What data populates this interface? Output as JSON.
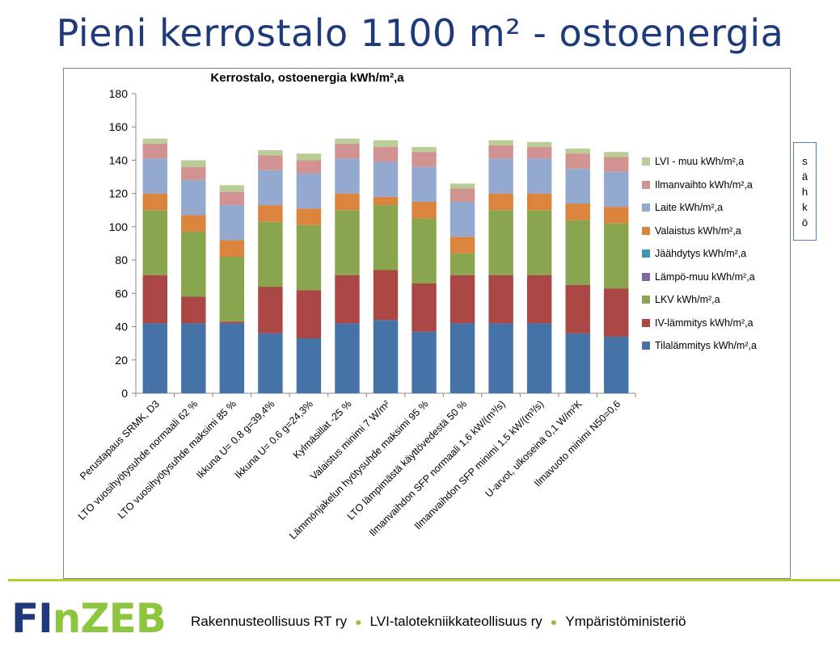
{
  "slide": {
    "title": "Pieni kerrostalo 1100 m² - ostoenergia"
  },
  "side_label": [
    "s",
    "ä",
    "h",
    "k",
    "ö"
  ],
  "footer": {
    "logo_fi": "FI",
    "logo_n": "n",
    "logo_zeb": "ZEB",
    "orgs": [
      "Rakennusteollisuus RT ry",
      "LVI-talotekniikkateollisuus ry",
      "Ympäristöministeriö"
    ]
  },
  "chart_data": {
    "type": "bar",
    "stacked": true,
    "title": "Kerrostalo, ostoenergia kWh/m²,a",
    "xlabel": "",
    "ylabel": "",
    "ylim": [
      0,
      180
    ],
    "yticks": [
      0,
      20,
      40,
      60,
      80,
      100,
      120,
      140,
      160,
      180
    ],
    "grid": false,
    "legend_position": "right",
    "categories": [
      "Perustapaus SRMK, D3",
      "LTO vuosihyötysuhde normaali 62 %",
      "LTO vuosihyötysuhde maksimi 85 %",
      "Ikkuna U= 0.8 g=39,4%",
      "Ikkuna U= 0.6 g=24,3%",
      "Kylmäsillat -25 %",
      "Valaistus minimi 7 W/m²",
      "Lämmönjakelun hyötysuhde maksimi 95 %",
      "LTO lämpimästä käyttövedestä 50 %",
      "Ilmanvaihdon SFP normaali 1,6 kW/(m³/s)",
      "Ilmanvaihdon SFP minimi 1,5 kW/(m³/s)",
      "U-arvot, ulkoseinä 0,1 W/m²K",
      "Ilmavuoto minimi N50=0,6"
    ],
    "series": [
      {
        "name": "Tilalämmitys kWh/m²,a",
        "color": "#4572a7",
        "values": [
          42,
          42,
          42,
          36,
          33,
          42,
          44,
          37,
          42,
          42,
          42,
          36,
          34
        ]
      },
      {
        "name": "IV-lämmitys kWh/m²,a",
        "color": "#aa4643",
        "values": [
          29,
          16,
          1,
          28,
          29,
          29,
          30,
          29,
          29,
          29,
          29,
          29,
          29
        ]
      },
      {
        "name": "LKV kWh/m²,a",
        "color": "#89a54e",
        "values": [
          39,
          39,
          39,
          39,
          39,
          39,
          39,
          39,
          13,
          39,
          39,
          39,
          39
        ]
      },
      {
        "name": "Lämpö-muu kWh/m²,a",
        "color": "#80699b",
        "values": [
          0,
          0,
          0,
          0,
          0,
          0,
          0,
          0,
          0,
          0,
          0,
          0,
          0
        ]
      },
      {
        "name": "Jäähdytys kWh/m²,a",
        "color": "#3d96ae",
        "values": [
          0,
          0,
          0,
          0,
          0,
          0,
          0,
          0,
          0,
          0,
          0,
          0,
          0
        ]
      },
      {
        "name": "Valaistus kWh/m²,a",
        "color": "#db843d",
        "values": [
          10,
          10,
          10,
          10,
          10,
          10,
          5,
          10,
          10,
          10,
          10,
          10,
          10
        ]
      },
      {
        "name": "Laite kWh/m²,a",
        "color": "#93a9cf",
        "values": [
          21,
          21,
          21,
          21,
          21,
          21,
          21,
          21,
          21,
          21,
          21,
          21,
          21
        ]
      },
      {
        "name": "Ilmanvaihto kWh/m²,a",
        "color": "#d19392",
        "values": [
          9,
          8,
          8,
          9,
          8,
          9,
          9,
          9,
          8,
          8,
          7,
          9,
          9
        ]
      },
      {
        "name": "LVI - muu kWh/m²,a",
        "color": "#b9cd96",
        "values": [
          3,
          4,
          4,
          3,
          4,
          3,
          4,
          3,
          3,
          3,
          3,
          3,
          3
        ]
      }
    ]
  }
}
